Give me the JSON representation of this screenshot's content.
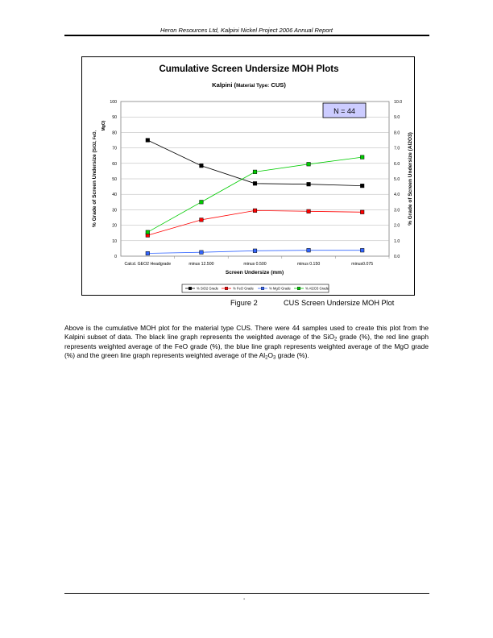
{
  "header": {
    "text": "Heron Resources Ltd, Kalpini Nickel Project 2006 Annual Report"
  },
  "figure": {
    "label": "Figure 2",
    "caption": "CUS Screen Undersize MOH Plot"
  },
  "body": {
    "p1": "Above is the cumulative MOH plot for the material type CUS.  There were 44 samples used to create this plot from the Kalpini subset of data. The black line graph represents the weighted average of the SiO",
    "sub1": "2",
    "p2": " grade (%), the red line graph represents weighted average of the FeO grade (%), the blue line graph represents weighted average of the MgO grade (%) and the green line graph represents weighted average of the Al",
    "sub2": "2",
    "p3": "O",
    "sub3": "3",
    "p4": " grade (%)."
  },
  "footer": {
    "page": "-"
  },
  "colors": {
    "sio2": "#000000",
    "feo": "#ff0000",
    "mgo": "#3366ff",
    "al2o3": "#00ff00"
  },
  "chart_data": {
    "type": "line",
    "title": "Cumulative Screen Undersize MOH Plots",
    "subtitle": {
      "main": "Kalpini (",
      "small": "Material Type:",
      "value": " CUS)"
    },
    "annotation": "N = 44",
    "xlabel": "Screen Undersize (mm)",
    "ylabel_left": "% Grade of Screen Undersize (",
    "ylabel_left_small": "SiO2, FeO,",
    "ylabel_left_line2": "MgO)",
    "ylabel_right": "% Grade of Screen Undersize (Al2O3)",
    "categories": [
      "Calcd. GEO2 Headgrade",
      "minus 12.500",
      "minus 0.500",
      "minus 0.150",
      "minus0.075"
    ],
    "ylim_left": [
      0,
      100
    ],
    "ylim_right": [
      0,
      10
    ],
    "yticks_left": [
      "0",
      "10",
      "20",
      "30",
      "40",
      "50",
      "60",
      "70",
      "80",
      "90",
      "100"
    ],
    "yticks_right": [
      "0.0",
      "1.0",
      "2.0",
      "3.0",
      "4.0",
      "5.0",
      "6.0",
      "7.0",
      "8.0",
      "9.0",
      "10.0"
    ],
    "grid": true,
    "legend_position": "bottom",
    "series": [
      {
        "name": "% SiO2 Grade",
        "axis": "left",
        "color": "#000000",
        "values": [
          75,
          58.5,
          47,
          46.5,
          45.5
        ]
      },
      {
        "name": "% FeO Grade",
        "axis": "left",
        "color": "#ff0000",
        "values": [
          13.5,
          23.5,
          29.5,
          29,
          28.5
        ]
      },
      {
        "name": "% MgO Grade",
        "axis": "left",
        "color": "#3366ff",
        "values": [
          1.8,
          2.5,
          3.5,
          3.8,
          3.8
        ]
      },
      {
        "name": "% Al2O3 Grade",
        "axis": "right",
        "color": "#00cc00",
        "values": [
          1.55,
          3.5,
          5.45,
          5.95,
          6.4
        ]
      }
    ]
  }
}
